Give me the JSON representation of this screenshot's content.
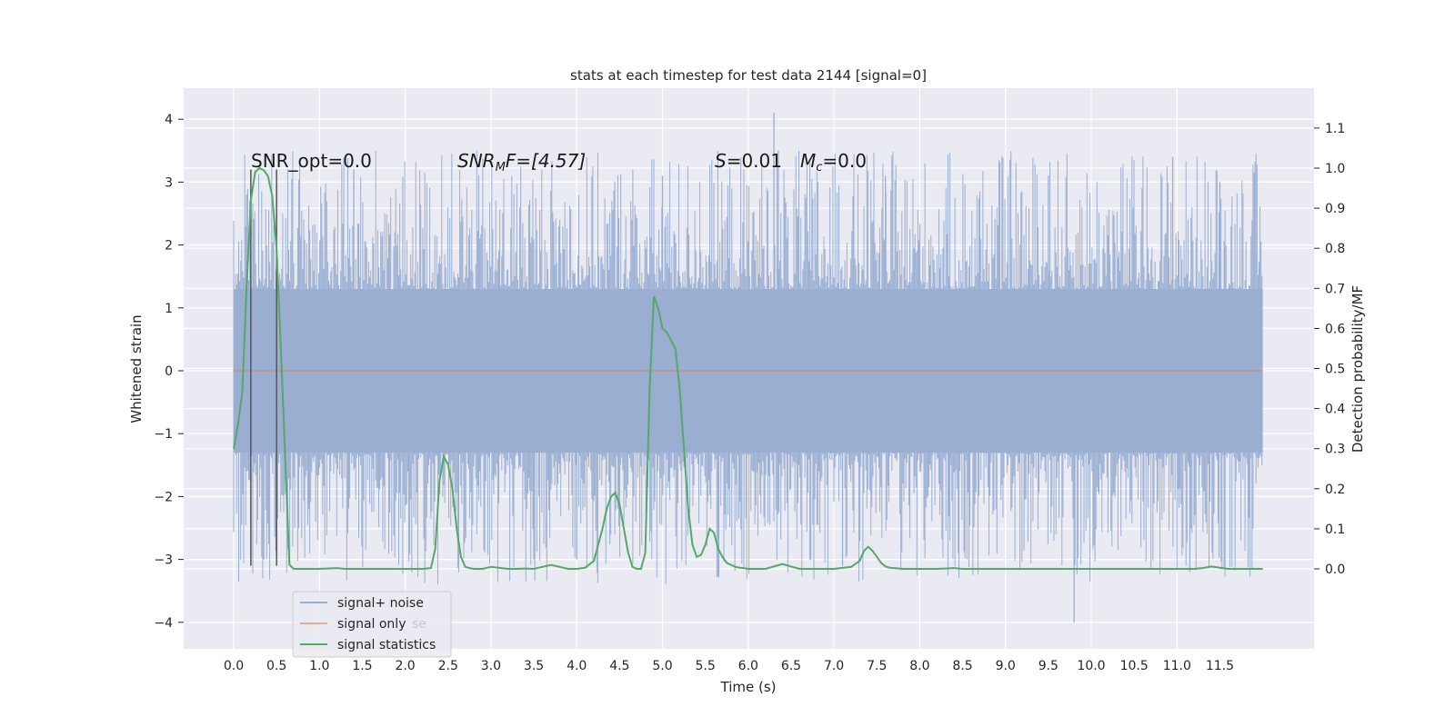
{
  "chart_data": {
    "type": "line",
    "title": "stats at each timestep for test data 2144 [signal=0]",
    "xlabel": "Time (s)",
    "ylabel": "Whitened strain",
    "ylabel_right": "Detection probability/MF",
    "xlim": [
      -0.5,
      12.6
    ],
    "ylim": [
      -4.4,
      4.5
    ],
    "ylim_right": [
      -0.2,
      1.2
    ],
    "x_ticks": [
      "0.0",
      "0.5",
      "1.0",
      "1.5",
      "2.0",
      "2.5",
      "3.0",
      "3.5",
      "4.0",
      "4.5",
      "5.0",
      "5.5",
      "6.0",
      "6.5",
      "7.0",
      "7.5",
      "8.0",
      "8.5",
      "9.0",
      "9.5",
      "10.0",
      "10.5",
      "11.0",
      "11.5"
    ],
    "y_ticks": [
      "4",
      "3",
      "2",
      "1",
      "0",
      "−1",
      "−2",
      "−3",
      "−4"
    ],
    "y_tick_values": [
      4,
      3,
      2,
      1,
      0,
      -1,
      -2,
      -3,
      -4
    ],
    "y_right_ticks": [
      "1.1",
      "1.0",
      "0.9",
      "0.8",
      "0.7",
      "0.6",
      "0.5",
      "0.4",
      "0.3",
      "0.2",
      "0.1",
      "0.0"
    ],
    "y_right_tick_values": [
      1.1,
      1.0,
      0.9,
      0.8,
      0.7,
      0.6,
      0.5,
      0.4,
      0.3,
      0.2,
      0.1,
      0.0
    ],
    "grid": true,
    "colors": {
      "background": "#eaeaf2",
      "grid": "#ffffff",
      "noise": "#9aaed2",
      "signal_only": "#dd8452",
      "statistics": "#55a868",
      "vlines": "#555555"
    },
    "series": [
      {
        "name": "signal+ noise",
        "description_of_envelope": "dense band",
        "x_range": [
          0.0,
          12.0
        ],
        "core_band": [
          -1.3,
          1.3
        ],
        "typical_extent": [
          -2.3,
          2.2
        ],
        "outliers": [
          {
            "x": 6.3,
            "y": 4.1
          },
          {
            "x": 9.8,
            "y": -4.0
          },
          {
            "x": 11.15,
            "y": -3.2
          },
          {
            "x": 10.95,
            "y": 3.4
          },
          {
            "x": 11.5,
            "y": 3.0
          },
          {
            "x": 0.15,
            "y": 2.8
          },
          {
            "x": 1.4,
            "y": 3.2
          },
          {
            "x": 6.35,
            "y": 3.5
          },
          {
            "x": 5.0,
            "y": 3.1
          },
          {
            "x": 7.6,
            "y": 3.1
          },
          {
            "x": 9.5,
            "y": 3.1
          },
          {
            "x": 4.0,
            "y": -3.0
          },
          {
            "x": 7.1,
            "y": -3.1
          },
          {
            "x": 8.45,
            "y": -2.9
          },
          {
            "x": 3.5,
            "y": -3.0
          },
          {
            "x": 0.35,
            "y": -3.0
          }
        ]
      },
      {
        "name": "signal only",
        "x": [
          0.0,
          12.0
        ],
        "y": [
          0.0,
          0.0
        ]
      },
      {
        "name": "signal statistics",
        "axis": "right",
        "x": [
          0.0,
          0.05,
          0.1,
          0.15,
          0.2,
          0.25,
          0.3,
          0.35,
          0.4,
          0.45,
          0.5,
          0.55,
          0.6,
          0.65,
          0.7,
          0.8,
          1.0,
          1.2,
          1.3,
          1.5,
          2.0,
          2.2,
          2.3,
          2.35,
          2.4,
          2.45,
          2.5,
          2.55,
          2.6,
          2.65,
          2.7,
          2.75,
          2.8,
          2.9,
          3.0,
          3.2,
          3.3,
          3.4,
          3.5,
          3.7,
          3.9,
          4.0,
          4.1,
          4.2,
          4.25,
          4.3,
          4.35,
          4.4,
          4.45,
          4.5,
          4.55,
          4.6,
          4.65,
          4.7,
          4.75,
          4.8,
          4.85,
          4.9,
          4.95,
          5.0,
          5.05,
          5.1,
          5.15,
          5.2,
          5.25,
          5.3,
          5.35,
          5.4,
          5.45,
          5.5,
          5.55,
          5.6,
          5.65,
          5.7,
          5.75,
          5.8,
          5.85,
          5.9,
          5.95,
          6.0,
          6.1,
          6.2,
          6.4,
          6.5,
          6.6,
          6.7,
          6.8,
          7.0,
          7.2,
          7.3,
          7.35,
          7.4,
          7.45,
          7.5,
          7.55,
          7.6,
          7.65,
          7.7,
          7.8,
          8.0,
          8.2,
          8.4,
          8.5,
          8.6,
          9.0,
          9.5,
          10.0,
          10.5,
          11.0,
          11.2,
          11.3,
          11.4,
          11.5,
          11.6,
          11.8,
          12.0
        ],
        "y": [
          0.3,
          0.36,
          0.44,
          0.7,
          0.92,
          0.99,
          1.0,
          0.995,
          0.98,
          0.93,
          0.8,
          0.55,
          0.28,
          0.01,
          0.0,
          0.0,
          0.0,
          0.002,
          0.0,
          0.0,
          0.0,
          0.0,
          0.002,
          0.05,
          0.22,
          0.28,
          0.26,
          0.2,
          0.1,
          0.03,
          0.005,
          0.002,
          0.0,
          0.0,
          0.005,
          0.0,
          0.0,
          0.001,
          0.0,
          0.01,
          0.0,
          0.0,
          0.003,
          0.02,
          0.06,
          0.1,
          0.15,
          0.18,
          0.19,
          0.16,
          0.1,
          0.04,
          0.005,
          0.0,
          0.0,
          0.04,
          0.45,
          0.68,
          0.65,
          0.6,
          0.59,
          0.57,
          0.55,
          0.45,
          0.3,
          0.15,
          0.06,
          0.03,
          0.035,
          0.06,
          0.1,
          0.09,
          0.05,
          0.03,
          0.015,
          0.01,
          0.005,
          0.003,
          0.002,
          0.0,
          0.0,
          0.0,
          0.012,
          0.006,
          0.0,
          0.0,
          0.0,
          0.0,
          0.005,
          0.02,
          0.045,
          0.055,
          0.045,
          0.03,
          0.015,
          0.006,
          0.003,
          0.002,
          0.0,
          0.0,
          0.0,
          0.002,
          0.0,
          0.0,
          0.0,
          0.0,
          0.0,
          0.0,
          0.0,
          0.0,
          0.002,
          0.006,
          0.003,
          0.0,
          0.0,
          0.0
        ]
      }
    ],
    "vertical_lines": [
      {
        "x": 0.2,
        "y_from": -3.1,
        "y_to": 3.2
      },
      {
        "x": 0.5,
        "y_from": -3.1,
        "y_to": 3.2
      }
    ],
    "annotations": {
      "snr_opt": "SNR_opt=0.0",
      "snr_mf_base": "SNR",
      "snr_mf_sub": "M",
      "snr_mf_rest": "F=[4.57]",
      "s_base": "S",
      "s_rest": "=0.01",
      "mc_base": "M",
      "mc_sub": "c",
      "mc_rest": "=0.0"
    },
    "legend": {
      "placement": "lower-left",
      "entries": [
        "signal+ noise",
        "signal only",
        "signal statistics"
      ],
      "ghost_text": "se"
    }
  }
}
